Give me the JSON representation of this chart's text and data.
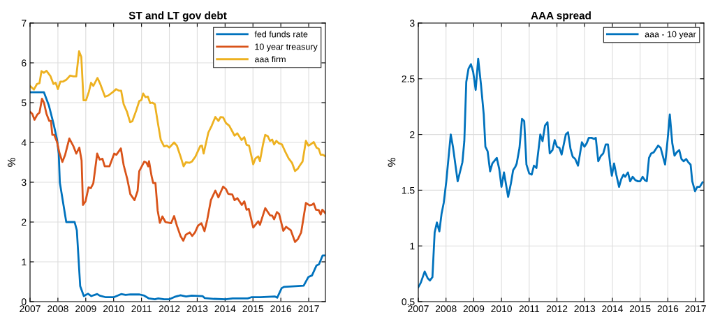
{
  "chart_data": [
    {
      "type": "line",
      "title": "ST and LT gov debt",
      "ylabel": "%",
      "xlim": [
        2007,
        2017.6
      ],
      "xticks": [
        2007,
        2008,
        2009,
        2010,
        2011,
        2012,
        2013,
        2014,
        2015,
        2016,
        2017
      ],
      "ylim": [
        0,
        7
      ],
      "yticks": [
        0,
        1,
        2,
        3,
        4,
        5,
        6,
        7
      ],
      "grid": true,
      "legend": "top right",
      "marker": "none",
      "line_style": "solid",
      "series": [
        {
          "name": "fed funds rate",
          "color": "#0072bd",
          "x": [
            2007.0,
            2007.5,
            2007.68,
            2007.84,
            2007.97,
            2008.03,
            2008.07,
            2008.3,
            2008.6,
            2008.68,
            2008.8,
            2008.93,
            2009.08,
            2009.2,
            2009.41,
            2009.5,
            2009.72,
            2010.0,
            2010.27,
            2010.43,
            2010.6,
            2010.93,
            2011.1,
            2011.27,
            2011.48,
            2011.6,
            2011.81,
            2012.0,
            2012.19,
            2012.4,
            2012.6,
            2012.8,
            2013.19,
            2013.27,
            2013.6,
            2014.02,
            2014.27,
            2014.81,
            2014.94,
            2015.27,
            2015.78,
            2015.87,
            2016.03,
            2016.11,
            2016.53,
            2016.82,
            2016.99,
            2017.12,
            2017.28,
            2017.37,
            2017.5,
            2017.6
          ],
          "values": [
            5.26,
            5.26,
            4.92,
            4.48,
            4.07,
            3.72,
            2.99,
            2.0,
            2.0,
            1.79,
            0.39,
            0.14,
            0.2,
            0.14,
            0.19,
            0.15,
            0.11,
            0.11,
            0.19,
            0.17,
            0.18,
            0.18,
            0.15,
            0.08,
            0.06,
            0.08,
            0.06,
            0.06,
            0.12,
            0.16,
            0.13,
            0.15,
            0.14,
            0.09,
            0.07,
            0.06,
            0.08,
            0.08,
            0.11,
            0.11,
            0.13,
            0.1,
            0.34,
            0.37,
            0.39,
            0.4,
            0.62,
            0.66,
            0.91,
            0.94,
            1.16,
            1.16
          ]
        },
        {
          "name": "10 year treasury",
          "color": "#d95319",
          "x": [
            2007.0,
            2007.08,
            2007.16,
            2007.26,
            2007.34,
            2007.43,
            2007.5,
            2007.59,
            2007.69,
            2007.75,
            2007.8,
            2007.87,
            2007.97,
            2008.05,
            2008.16,
            2008.26,
            2008.41,
            2008.56,
            2008.66,
            2008.77,
            2008.85,
            2008.9,
            2008.99,
            2009.1,
            2009.18,
            2009.27,
            2009.41,
            2009.5,
            2009.6,
            2009.68,
            2009.85,
            2010.02,
            2010.1,
            2010.26,
            2010.36,
            2010.49,
            2010.6,
            2010.75,
            2010.86,
            2010.92,
            2011.1,
            2011.18,
            2011.24,
            2011.27,
            2011.36,
            2011.42,
            2011.5,
            2011.58,
            2011.66,
            2011.75,
            2011.86,
            2012.06,
            2012.17,
            2012.27,
            2012.4,
            2012.5,
            2012.59,
            2012.73,
            2012.82,
            2012.92,
            2013.03,
            2013.15,
            2013.26,
            2013.36,
            2013.49,
            2013.65,
            2013.76,
            2013.93,
            2014.03,
            2014.11,
            2014.26,
            2014.34,
            2014.44,
            2014.6,
            2014.69,
            2014.77,
            2014.85,
            2015.01,
            2015.19,
            2015.25,
            2015.44,
            2015.61,
            2015.69,
            2015.76,
            2015.86,
            2015.94,
            2016.09,
            2016.19,
            2016.36,
            2016.51,
            2016.61,
            2016.73,
            2016.9,
            2017.03,
            2017.11,
            2017.18,
            2017.26,
            2017.36,
            2017.43,
            2017.49,
            2017.6
          ],
          "values": [
            4.77,
            4.72,
            4.57,
            4.7,
            4.75,
            5.1,
            5.0,
            4.72,
            4.54,
            4.54,
            4.19,
            4.19,
            4.01,
            3.75,
            3.51,
            3.69,
            4.1,
            3.9,
            3.72,
            3.87,
            3.55,
            2.43,
            2.52,
            2.87,
            2.85,
            2.97,
            3.72,
            3.57,
            3.59,
            3.4,
            3.4,
            3.72,
            3.69,
            3.85,
            3.43,
            3.08,
            2.7,
            2.55,
            2.78,
            3.28,
            3.52,
            3.49,
            3.4,
            3.53,
            3.16,
            2.98,
            2.98,
            2.29,
            1.98,
            2.14,
            2.0,
            1.97,
            2.15,
            1.91,
            1.65,
            1.53,
            1.68,
            1.74,
            1.65,
            1.74,
            1.91,
            1.97,
            1.77,
            2.06,
            2.55,
            2.79,
            2.62,
            2.89,
            2.83,
            2.71,
            2.69,
            2.55,
            2.6,
            2.43,
            2.52,
            2.31,
            2.33,
            1.86,
            2.02,
            1.93,
            2.35,
            2.17,
            2.16,
            2.07,
            2.25,
            2.2,
            1.78,
            1.88,
            1.79,
            1.5,
            1.57,
            1.74,
            2.48,
            2.42,
            2.43,
            2.47,
            2.31,
            2.3,
            2.19,
            2.31,
            2.22
          ]
        },
        {
          "name": "aaa firm",
          "color": "#edb120",
          "x": [
            2007.0,
            2007.14,
            2007.25,
            2007.34,
            2007.41,
            2007.5,
            2007.59,
            2007.73,
            2007.84,
            2007.92,
            2008.0,
            2008.09,
            2008.19,
            2008.31,
            2008.44,
            2008.56,
            2008.66,
            2008.76,
            2008.84,
            2008.92,
            2009.01,
            2009.11,
            2009.19,
            2009.27,
            2009.42,
            2009.52,
            2009.69,
            2009.81,
            2009.98,
            2010.09,
            2010.19,
            2010.27,
            2010.36,
            2010.48,
            2010.59,
            2010.67,
            2010.81,
            2010.92,
            2011.0,
            2011.06,
            2011.14,
            2011.23,
            2011.31,
            2011.39,
            2011.48,
            2011.59,
            2011.69,
            2011.81,
            2011.91,
            2012.0,
            2012.17,
            2012.27,
            2012.4,
            2012.51,
            2012.59,
            2012.73,
            2012.81,
            2012.94,
            2013.11,
            2013.17,
            2013.23,
            2013.4,
            2013.52,
            2013.65,
            2013.76,
            2013.84,
            2013.93,
            2014.03,
            2014.15,
            2014.28,
            2014.34,
            2014.44,
            2014.59,
            2014.69,
            2014.77,
            2014.86,
            2015.01,
            2015.09,
            2015.19,
            2015.25,
            2015.36,
            2015.44,
            2015.53,
            2015.61,
            2015.69,
            2015.76,
            2015.84,
            2015.93,
            2016.04,
            2016.15,
            2016.28,
            2016.4,
            2016.51,
            2016.61,
            2016.69,
            2016.78,
            2016.9,
            2016.99,
            2017.09,
            2017.18,
            2017.28,
            2017.36,
            2017.43,
            2017.51,
            2017.6
          ],
          "values": [
            5.42,
            5.33,
            5.47,
            5.49,
            5.79,
            5.75,
            5.8,
            5.67,
            5.47,
            5.5,
            5.34,
            5.53,
            5.53,
            5.58,
            5.68,
            5.66,
            5.66,
            6.29,
            6.15,
            5.06,
            5.06,
            5.27,
            5.5,
            5.42,
            5.62,
            5.47,
            5.15,
            5.18,
            5.27,
            5.34,
            5.3,
            5.3,
            4.96,
            4.77,
            4.51,
            4.53,
            4.8,
            5.04,
            5.07,
            5.23,
            5.14,
            5.15,
            4.99,
            5.0,
            4.96,
            4.48,
            4.07,
            3.9,
            3.92,
            3.87,
            4.0,
            3.92,
            3.65,
            3.4,
            3.5,
            3.49,
            3.52,
            3.65,
            3.91,
            3.92,
            3.72,
            4.25,
            4.42,
            4.64,
            4.54,
            4.64,
            4.63,
            4.49,
            4.42,
            4.25,
            4.17,
            4.23,
            4.06,
            4.13,
            3.94,
            3.92,
            3.45,
            3.6,
            3.65,
            3.53,
            3.95,
            4.19,
            4.16,
            4.04,
            4.07,
            3.95,
            4.04,
            3.98,
            3.95,
            3.78,
            3.6,
            3.49,
            3.28,
            3.34,
            3.43,
            3.52,
            4.04,
            3.92,
            3.96,
            4.01,
            3.87,
            3.84,
            3.69,
            3.69,
            3.65
          ]
        }
      ]
    },
    {
      "type": "line",
      "title": "AAA spread",
      "ylabel": "%",
      "xlim": [
        2007,
        2017.3
      ],
      "xticks": [
        2007,
        2008,
        2009,
        2010,
        2011,
        2012,
        2013,
        2014,
        2015,
        2016,
        2017
      ],
      "ylim": [
        0.5,
        3
      ],
      "yticks": [
        0.5,
        1,
        1.5,
        2,
        2.5,
        3
      ],
      "grid": true,
      "legend": "top right",
      "marker": "none",
      "line_style": "solid",
      "series": [
        {
          "name": "aaa - 10 year",
          "color": "#0072bd",
          "x": [
            2007.0,
            2007.09,
            2007.23,
            2007.34,
            2007.42,
            2007.51,
            2007.59,
            2007.67,
            2007.76,
            2007.84,
            2007.92,
            2008.01,
            2008.17,
            2008.25,
            2008.42,
            2008.59,
            2008.66,
            2008.73,
            2008.81,
            2008.9,
            2008.98,
            2009.07,
            2009.16,
            2009.26,
            2009.36,
            2009.42,
            2009.5,
            2009.59,
            2009.67,
            2009.83,
            2009.92,
            2010.0,
            2010.09,
            2010.24,
            2010.34,
            2010.42,
            2010.5,
            2010.55,
            2010.65,
            2010.74,
            2010.82,
            2010.9,
            2011.0,
            2011.09,
            2011.17,
            2011.26,
            2011.3,
            2011.4,
            2011.48,
            2011.57,
            2011.66,
            2011.74,
            2011.84,
            2011.92,
            2012.0,
            2012.09,
            2012.17,
            2012.32,
            2012.4,
            2012.49,
            2012.57,
            2012.66,
            2012.76,
            2012.86,
            2012.9,
            2012.99,
            2013.07,
            2013.15,
            2013.25,
            2013.34,
            2013.4,
            2013.49,
            2013.59,
            2013.67,
            2013.76,
            2013.84,
            2013.92,
            2013.98,
            2014.06,
            2014.14,
            2014.24,
            2014.32,
            2014.4,
            2014.46,
            2014.56,
            2014.64,
            2014.73,
            2014.83,
            2014.92,
            2015.0,
            2015.09,
            2015.17,
            2015.24,
            2015.32,
            2015.4,
            2015.49,
            2015.57,
            2015.65,
            2015.74,
            2015.9,
            2015.99,
            2016.07,
            2016.16,
            2016.24,
            2016.32,
            2016.41,
            2016.49,
            2016.57,
            2016.66,
            2016.74,
            2016.82,
            2016.88,
            2016.98,
            2017.06,
            2017.15,
            2017.25
          ],
          "values": [
            0.63,
            0.67,
            0.77,
            0.71,
            0.69,
            0.72,
            1.12,
            1.21,
            1.13,
            1.29,
            1.39,
            1.58,
            2.0,
            1.89,
            1.58,
            1.75,
            1.94,
            2.47,
            2.59,
            2.63,
            2.56,
            2.4,
            2.68,
            2.45,
            2.18,
            1.89,
            1.85,
            1.67,
            1.74,
            1.79,
            1.69,
            1.53,
            1.66,
            1.44,
            1.56,
            1.68,
            1.71,
            1.74,
            1.88,
            2.14,
            2.12,
            1.73,
            1.65,
            1.64,
            1.72,
            1.7,
            1.79,
            2.0,
            1.94,
            2.08,
            2.11,
            1.83,
            1.86,
            1.95,
            1.89,
            1.88,
            1.82,
            2.0,
            2.02,
            1.87,
            1.8,
            1.78,
            1.72,
            1.87,
            1.93,
            1.89,
            1.92,
            1.97,
            1.97,
            1.96,
            1.97,
            1.76,
            1.81,
            1.83,
            1.91,
            1.91,
            1.73,
            1.63,
            1.74,
            1.64,
            1.53,
            1.6,
            1.64,
            1.62,
            1.66,
            1.58,
            1.62,
            1.59,
            1.58,
            1.58,
            1.62,
            1.59,
            1.58,
            1.79,
            1.83,
            1.84,
            1.87,
            1.9,
            1.88,
            1.73,
            1.95,
            2.18,
            1.92,
            1.81,
            1.84,
            1.86,
            1.78,
            1.76,
            1.78,
            1.75,
            1.73,
            1.58,
            1.49,
            1.53,
            1.53,
            1.57
          ]
        }
      ]
    }
  ]
}
